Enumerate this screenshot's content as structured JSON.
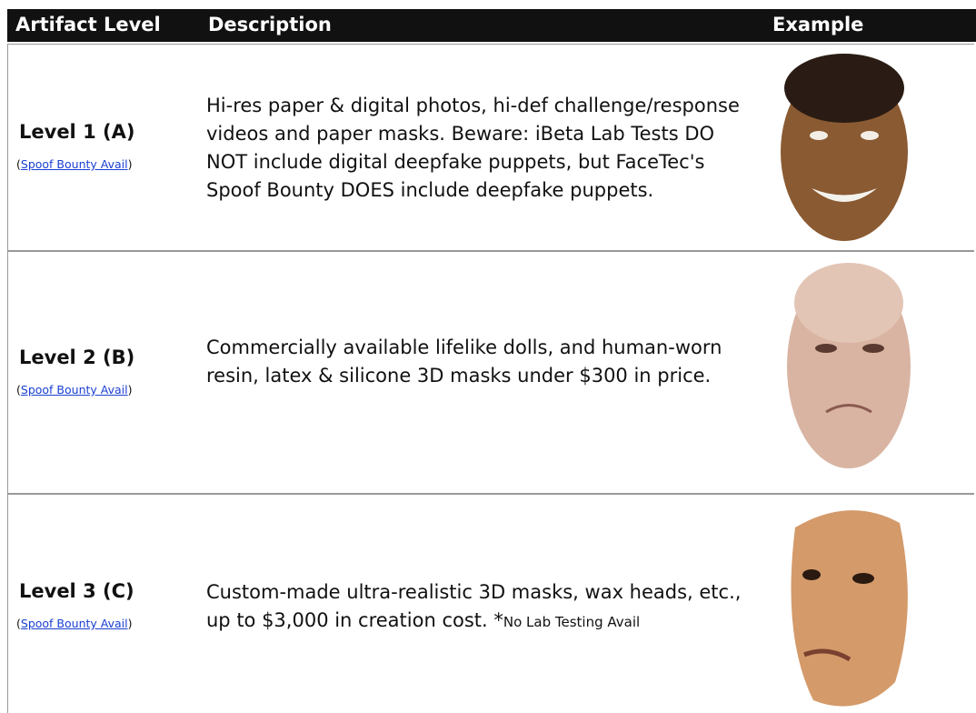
{
  "header": {
    "columns": [
      "Artifact Level",
      "Description",
      "Example"
    ]
  },
  "table": {
    "rows": [
      {
        "level": "Level 1 (A)",
        "note_open": "(",
        "link": "Spoof Bounty Avail",
        "note_close": ")",
        "description": "Hi-res paper & digital photos, hi-def challenge/response videos and paper masks. Beware: iBeta Lab Tests DO NOT include digital deepfake puppets, but FaceTec's Spoof Bounty DOES include deepfake puppets."
      },
      {
        "level": "Level 2 (B)",
        "note_open": "(",
        "link": "Spoof Bounty Avail",
        "note_close": ")",
        "description": "Commercially available lifelike dolls, and human-worn resin, latex & silicone 3D masks under $300 in price."
      },
      {
        "level": "Level 3 (C)",
        "note_open": "(",
        "link": "Spoof Bounty Avail",
        "note_close": ")",
        "description": "Custom-made ultra-realistic 3D masks, wax heads, etc., up to $3,000 in creation cost. *",
        "footnote": "No Lab Testing Avail"
      }
    ]
  }
}
